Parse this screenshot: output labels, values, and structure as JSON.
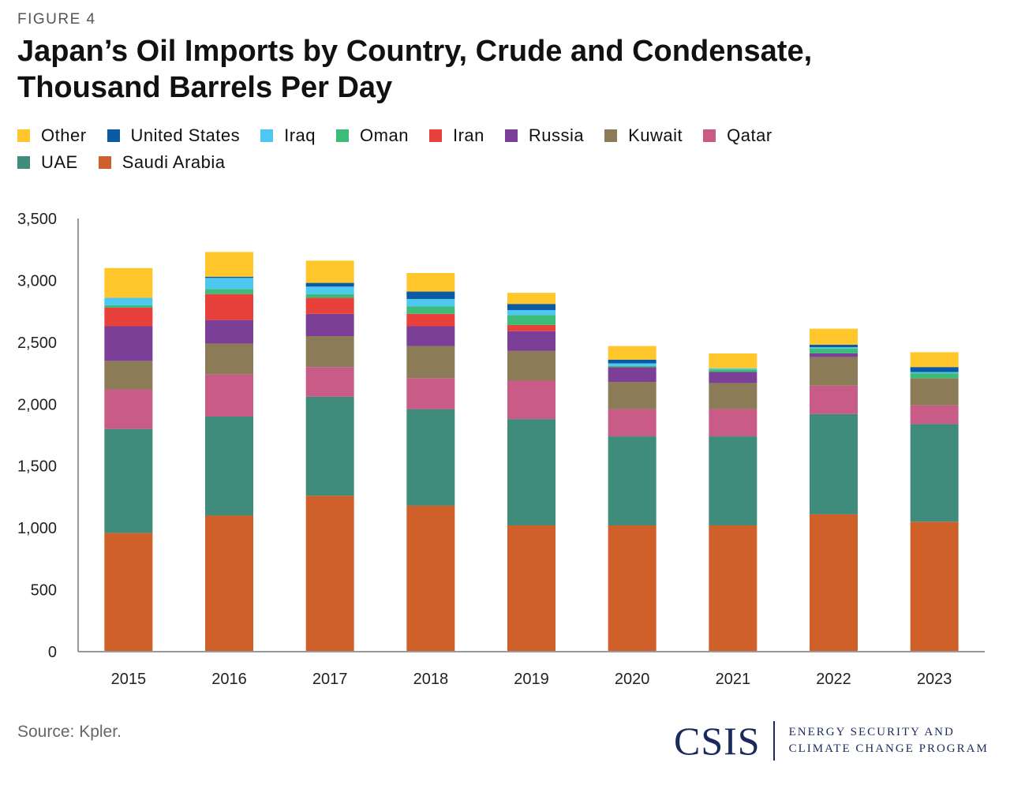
{
  "figure_label": "FIGURE 4",
  "title": "Japan’s Oil Imports by Country, Crude and Condensate, Thousand Barrels Per Day",
  "source": "Source: Kpler.",
  "logo": {
    "mark": "CSIS",
    "line1": "ENERGY SECURITY AND",
    "line2": "CLIMATE CHANGE PROGRAM"
  },
  "legend_rows": [
    [
      {
        "label": "Other",
        "color": "#FFC72C"
      },
      {
        "label": "United States",
        "color": "#0B5AA3"
      },
      {
        "label": "Iraq",
        "color": "#4DC8F0"
      },
      {
        "label": "Oman",
        "color": "#3DBB78"
      },
      {
        "label": "Iran",
        "color": "#E8403A"
      },
      {
        "label": "Russia",
        "color": "#7B3F98"
      },
      {
        "label": "Kuwait",
        "color": "#8C7B57"
      },
      {
        "label": "Qatar",
        "color": "#C85C86"
      }
    ],
    [
      {
        "label": "UAE",
        "color": "#3F8C7C"
      },
      {
        "label": "Saudi Arabia",
        "color": "#D0602A"
      }
    ]
  ],
  "chart_data": {
    "type": "bar",
    "stacked": true,
    "categories": [
      "2015",
      "2016",
      "2017",
      "2018",
      "2019",
      "2020",
      "2021",
      "2022",
      "2023"
    ],
    "ylim": [
      0,
      3500
    ],
    "yticks": [
      0,
      500,
      1000,
      1500,
      2000,
      2500,
      3000,
      3500
    ],
    "ytick_labels": [
      "0",
      "500",
      "1,000",
      "1,500",
      "2,000",
      "2,500",
      "3,000",
      "3,500"
    ],
    "grid": false,
    "legend_position": "top",
    "series": [
      {
        "name": "Saudi Arabia",
        "color": "#D0602A",
        "values": [
          960,
          1100,
          1260,
          1180,
          1020,
          1020,
          1020,
          1110,
          1050
        ]
      },
      {
        "name": "UAE",
        "color": "#3F8C7C",
        "values": [
          840,
          800,
          800,
          780,
          860,
          720,
          720,
          810,
          790
        ]
      },
      {
        "name": "Qatar",
        "color": "#C85C86",
        "values": [
          320,
          340,
          240,
          250,
          310,
          220,
          220,
          230,
          150
        ]
      },
      {
        "name": "Kuwait",
        "color": "#8C7B57",
        "values": [
          230,
          250,
          250,
          260,
          240,
          220,
          210,
          230,
          220
        ]
      },
      {
        "name": "Russia",
        "color": "#7B3F98",
        "values": [
          280,
          190,
          180,
          160,
          160,
          120,
          90,
          30,
          0
        ]
      },
      {
        "name": "Iran",
        "color": "#E8403A",
        "values": [
          150,
          210,
          130,
          100,
          50,
          0,
          0,
          0,
          0
        ]
      },
      {
        "name": "Oman",
        "color": "#3DBB78",
        "values": [
          20,
          40,
          30,
          60,
          80,
          10,
          20,
          40,
          40
        ]
      },
      {
        "name": "Iraq",
        "color": "#4DC8F0",
        "values": [
          60,
          90,
          60,
          60,
          40,
          20,
          10,
          10,
          10
        ]
      },
      {
        "name": "United States",
        "color": "#0B5AA3",
        "values": [
          0,
          10,
          30,
          60,
          50,
          30,
          0,
          20,
          40
        ]
      },
      {
        "name": "Other",
        "color": "#FFC72C",
        "values": [
          240,
          200,
          180,
          150,
          90,
          110,
          120,
          130,
          120
        ]
      }
    ]
  }
}
